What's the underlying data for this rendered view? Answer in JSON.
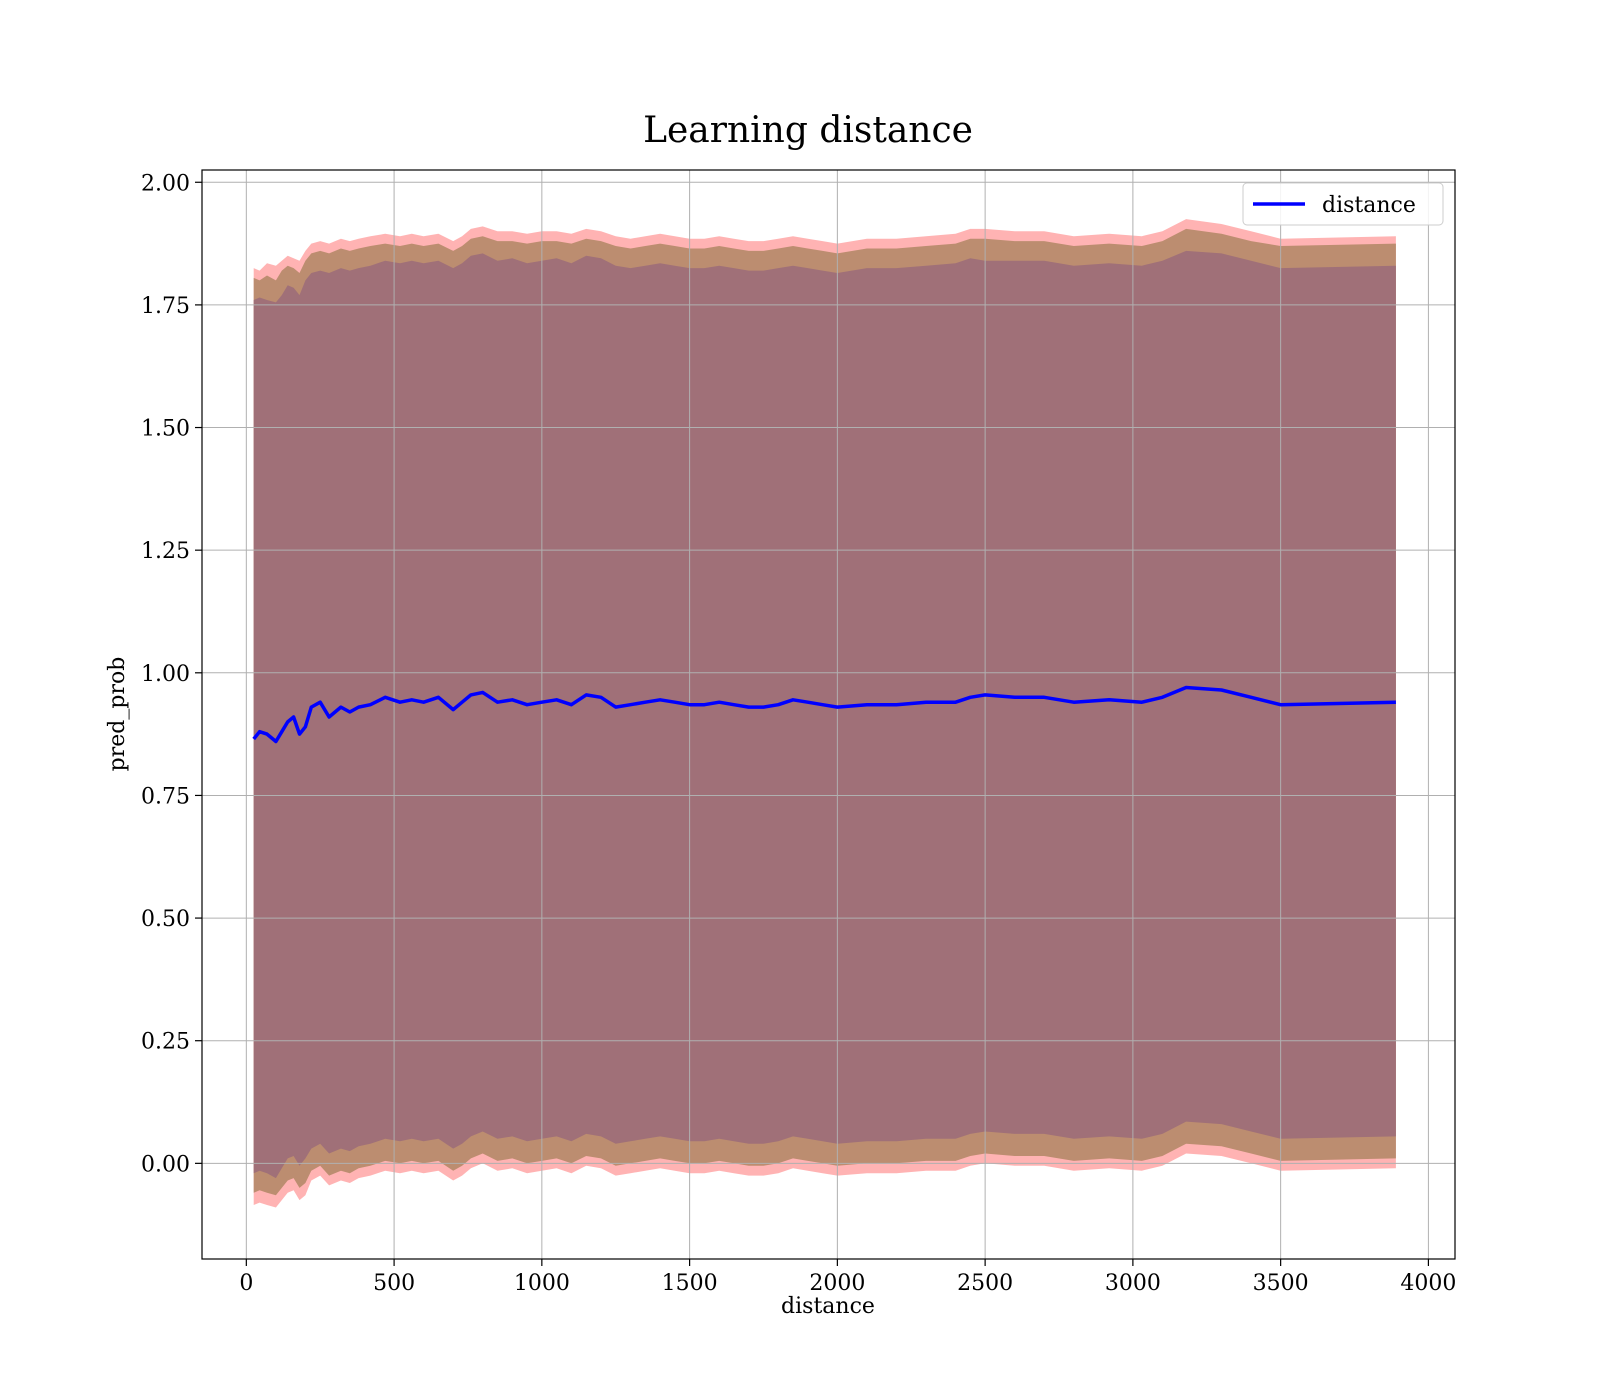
{
  "chart_data": {
    "type": "line",
    "title": "Learning distance",
    "xlabel": "distance",
    "ylabel": "pred_prob",
    "xlim": [
      -150,
      4090
    ],
    "ylim": [
      -0.195,
      2.025
    ],
    "xticks": [
      "0",
      "500",
      "1000",
      "1500",
      "2000",
      "2500",
      "3000",
      "3500",
      "4000"
    ],
    "xtick_values": [
      0,
      500,
      1000,
      1500,
      2000,
      2500,
      3000,
      3500,
      4000
    ],
    "yticks": [
      "0.00",
      "0.25",
      "0.50",
      "0.75",
      "1.00",
      "1.25",
      "1.50",
      "1.75",
      "2.00"
    ],
    "ytick_values": [
      0,
      0.25,
      0.5,
      0.75,
      1.0,
      1.25,
      1.5,
      1.75,
      2.0
    ],
    "grid": true,
    "legend_position": "top-right",
    "series": [
      {
        "name": "distance",
        "color": "#0000ff",
        "x": [
          25,
          45,
          70,
          100,
          120,
          140,
          160,
          180,
          200,
          220,
          250,
          280,
          320,
          350,
          380,
          420,
          470,
          520,
          560,
          600,
          650,
          700,
          730,
          760,
          800,
          850,
          900,
          950,
          1000,
          1050,
          1100,
          1150,
          1200,
          1250,
          1300,
          1350,
          1400,
          1450,
          1500,
          1550,
          1600,
          1650,
          1700,
          1750,
          1800,
          1850,
          1900,
          1950,
          2000,
          2100,
          2200,
          2300,
          2400,
          2450,
          2500,
          2600,
          2700,
          2800,
          2920,
          3030,
          3100,
          3180,
          3300,
          3400,
          3500,
          3890
        ],
        "values": [
          0.865,
          0.88,
          0.875,
          0.86,
          0.88,
          0.9,
          0.91,
          0.875,
          0.89,
          0.93,
          0.94,
          0.91,
          0.93,
          0.92,
          0.93,
          0.935,
          0.95,
          0.94,
          0.945,
          0.94,
          0.95,
          0.925,
          0.94,
          0.955,
          0.96,
          0.94,
          0.945,
          0.935,
          0.94,
          0.945,
          0.935,
          0.955,
          0.95,
          0.93,
          0.935,
          0.94,
          0.945,
          0.94,
          0.935,
          0.935,
          0.94,
          0.935,
          0.93,
          0.93,
          0.935,
          0.945,
          0.94,
          0.935,
          0.93,
          0.935,
          0.935,
          0.94,
          0.94,
          0.95,
          0.955,
          0.95,
          0.95,
          0.94,
          0.945,
          0.94,
          0.95,
          0.97,
          0.965,
          0.95,
          0.935,
          0.94
        ]
      }
    ],
    "bands": [
      {
        "color": "#ff9999",
        "opacity": 0.75,
        "upper": [
          1.825,
          1.82,
          1.835,
          1.83,
          1.84,
          1.85,
          1.845,
          1.84,
          1.86,
          1.875,
          1.88,
          1.875,
          1.885,
          1.88,
          1.885,
          1.89,
          1.895,
          1.89,
          1.895,
          1.89,
          1.895,
          1.88,
          1.89,
          1.905,
          1.91,
          1.9,
          1.9,
          1.895,
          1.9,
          1.9,
          1.895,
          1.905,
          1.9,
          1.89,
          1.885,
          1.89,
          1.895,
          1.89,
          1.885,
          1.885,
          1.89,
          1.885,
          1.88,
          1.88,
          1.885,
          1.89,
          1.885,
          1.88,
          1.875,
          1.885,
          1.885,
          1.89,
          1.895,
          1.905,
          1.905,
          1.9,
          1.9,
          1.89,
          1.895,
          1.89,
          1.9,
          1.925,
          1.915,
          1.9,
          1.885,
          1.89
        ],
        "lower": [
          -0.085,
          -0.08,
          -0.085,
          -0.09,
          -0.075,
          -0.06,
          -0.055,
          -0.075,
          -0.065,
          -0.035,
          -0.025,
          -0.045,
          -0.035,
          -0.04,
          -0.03,
          -0.025,
          -0.015,
          -0.02,
          -0.015,
          -0.02,
          -0.015,
          -0.035,
          -0.025,
          -0.01,
          0.0,
          -0.015,
          -0.01,
          -0.02,
          -0.015,
          -0.01,
          -0.02,
          -0.005,
          -0.01,
          -0.025,
          -0.02,
          -0.015,
          -0.01,
          -0.015,
          -0.02,
          -0.02,
          -0.015,
          -0.02,
          -0.025,
          -0.025,
          -0.02,
          -0.01,
          -0.015,
          -0.02,
          -0.025,
          -0.02,
          -0.02,
          -0.015,
          -0.015,
          -0.005,
          0.0,
          -0.005,
          -0.005,
          -0.015,
          -0.01,
          -0.015,
          -0.005,
          0.02,
          0.015,
          0.0,
          -0.015,
          -0.01
        ]
      },
      {
        "color": "#b58868",
        "opacity": 0.9,
        "upper": [
          1.805,
          1.8,
          1.81,
          1.8,
          1.82,
          1.83,
          1.825,
          1.815,
          1.84,
          1.855,
          1.86,
          1.855,
          1.865,
          1.86,
          1.865,
          1.87,
          1.875,
          1.87,
          1.875,
          1.87,
          1.875,
          1.86,
          1.87,
          1.885,
          1.89,
          1.88,
          1.88,
          1.875,
          1.88,
          1.88,
          1.875,
          1.885,
          1.88,
          1.87,
          1.865,
          1.87,
          1.875,
          1.87,
          1.865,
          1.865,
          1.87,
          1.865,
          1.86,
          1.86,
          1.865,
          1.87,
          1.865,
          1.86,
          1.855,
          1.865,
          1.865,
          1.87,
          1.875,
          1.885,
          1.885,
          1.88,
          1.88,
          1.87,
          1.875,
          1.87,
          1.88,
          1.905,
          1.895,
          1.88,
          1.87,
          1.875
        ],
        "lower": [
          -0.06,
          -0.055,
          -0.06,
          -0.065,
          -0.05,
          -0.035,
          -0.03,
          -0.05,
          -0.04,
          -0.015,
          -0.005,
          -0.025,
          -0.015,
          -0.02,
          -0.01,
          -0.005,
          0.005,
          0.0,
          0.005,
          0.0,
          0.005,
          -0.015,
          -0.005,
          0.01,
          0.02,
          0.005,
          0.01,
          0.0,
          0.005,
          0.01,
          0.0,
          0.015,
          0.01,
          -0.005,
          0.0,
          0.005,
          0.01,
          0.005,
          0.0,
          0.0,
          0.005,
          0.0,
          -0.005,
          -0.005,
          0.0,
          0.01,
          0.005,
          0.0,
          -0.005,
          0.0,
          0.0,
          0.005,
          0.005,
          0.015,
          0.02,
          0.015,
          0.015,
          0.005,
          0.01,
          0.005,
          0.015,
          0.04,
          0.035,
          0.02,
          0.005,
          0.01
        ]
      },
      {
        "color": "#a07078",
        "opacity": 1.0,
        "upper": [
          1.76,
          1.765,
          1.76,
          1.755,
          1.77,
          1.79,
          1.785,
          1.77,
          1.8,
          1.815,
          1.82,
          1.815,
          1.825,
          1.82,
          1.825,
          1.83,
          1.84,
          1.835,
          1.84,
          1.835,
          1.84,
          1.825,
          1.835,
          1.85,
          1.855,
          1.84,
          1.845,
          1.835,
          1.84,
          1.845,
          1.835,
          1.85,
          1.845,
          1.83,
          1.825,
          1.83,
          1.835,
          1.83,
          1.825,
          1.825,
          1.83,
          1.825,
          1.82,
          1.82,
          1.825,
          1.83,
          1.825,
          1.82,
          1.815,
          1.825,
          1.825,
          1.83,
          1.835,
          1.845,
          1.84,
          1.84,
          1.84,
          1.83,
          1.835,
          1.83,
          1.84,
          1.86,
          1.855,
          1.84,
          1.825,
          1.83
        ],
        "lower": [
          -0.02,
          -0.015,
          -0.02,
          -0.03,
          -0.01,
          0.01,
          0.015,
          -0.005,
          0.01,
          0.03,
          0.04,
          0.02,
          0.03,
          0.025,
          0.035,
          0.04,
          0.05,
          0.045,
          0.05,
          0.045,
          0.05,
          0.03,
          0.04,
          0.055,
          0.065,
          0.05,
          0.055,
          0.045,
          0.05,
          0.055,
          0.045,
          0.06,
          0.055,
          0.04,
          0.045,
          0.05,
          0.055,
          0.05,
          0.045,
          0.045,
          0.05,
          0.045,
          0.04,
          0.04,
          0.045,
          0.055,
          0.05,
          0.045,
          0.04,
          0.045,
          0.045,
          0.05,
          0.05,
          0.06,
          0.065,
          0.06,
          0.06,
          0.05,
          0.055,
          0.05,
          0.06,
          0.085,
          0.08,
          0.065,
          0.05,
          0.055
        ]
      }
    ]
  }
}
